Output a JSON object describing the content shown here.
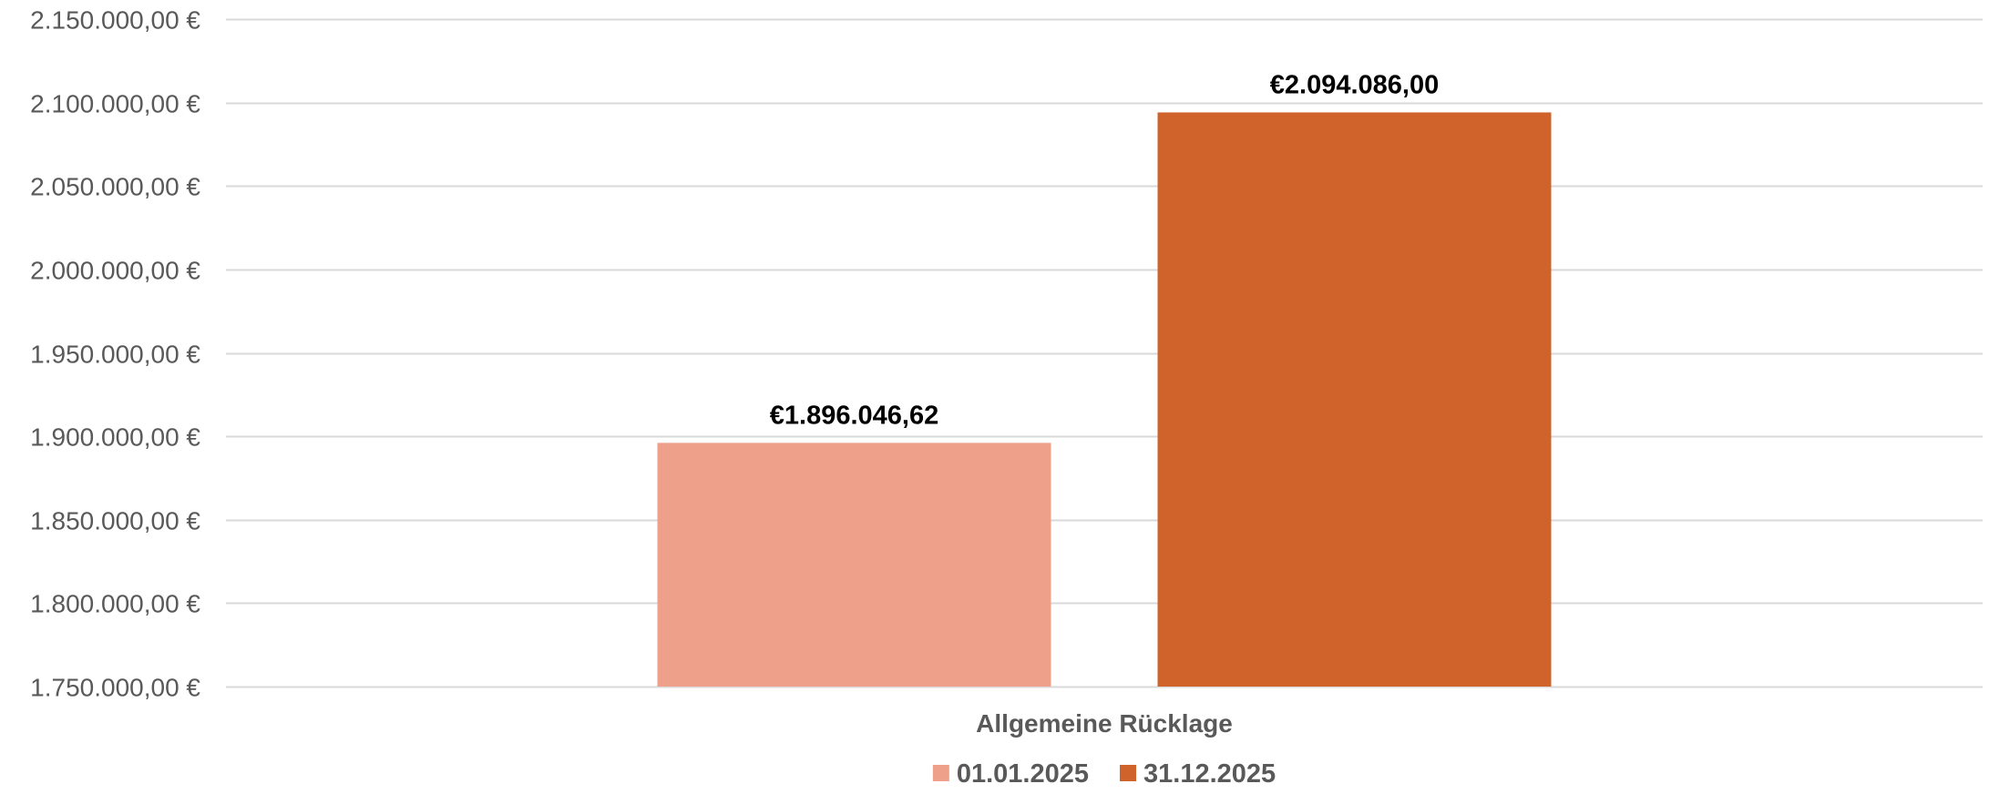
{
  "chart_data": {
    "type": "bar",
    "categories": [
      "Allgemeine Rücklage"
    ],
    "series": [
      {
        "name": "01.01.2025",
        "values": [
          1896046.62
        ],
        "color": "#EFA08A",
        "label": "€1.896.046,62"
      },
      {
        "name": "31.12.2025",
        "values": [
          2094086.0
        ],
        "color": "#D0632C",
        "label": "€2.094.086,00"
      }
    ],
    "ylim": [
      1750000,
      2150000
    ],
    "yticks": [
      1750000,
      1800000,
      1850000,
      1900000,
      1950000,
      2000000,
      2050000,
      2100000,
      2150000
    ],
    "ytick_labels": [
      "1.750.000,00 €",
      "1.800.000,00 €",
      "1.850.000,00 €",
      "1.900.000,00 €",
      "1.950.000,00 €",
      "2.000.000,00 €",
      "2.050.000,00 €",
      "2.100.000,00 €",
      "2.150.000,00 €"
    ],
    "grid": true,
    "gridline_color": "#D9D9D9",
    "legend_position": "bottom"
  }
}
